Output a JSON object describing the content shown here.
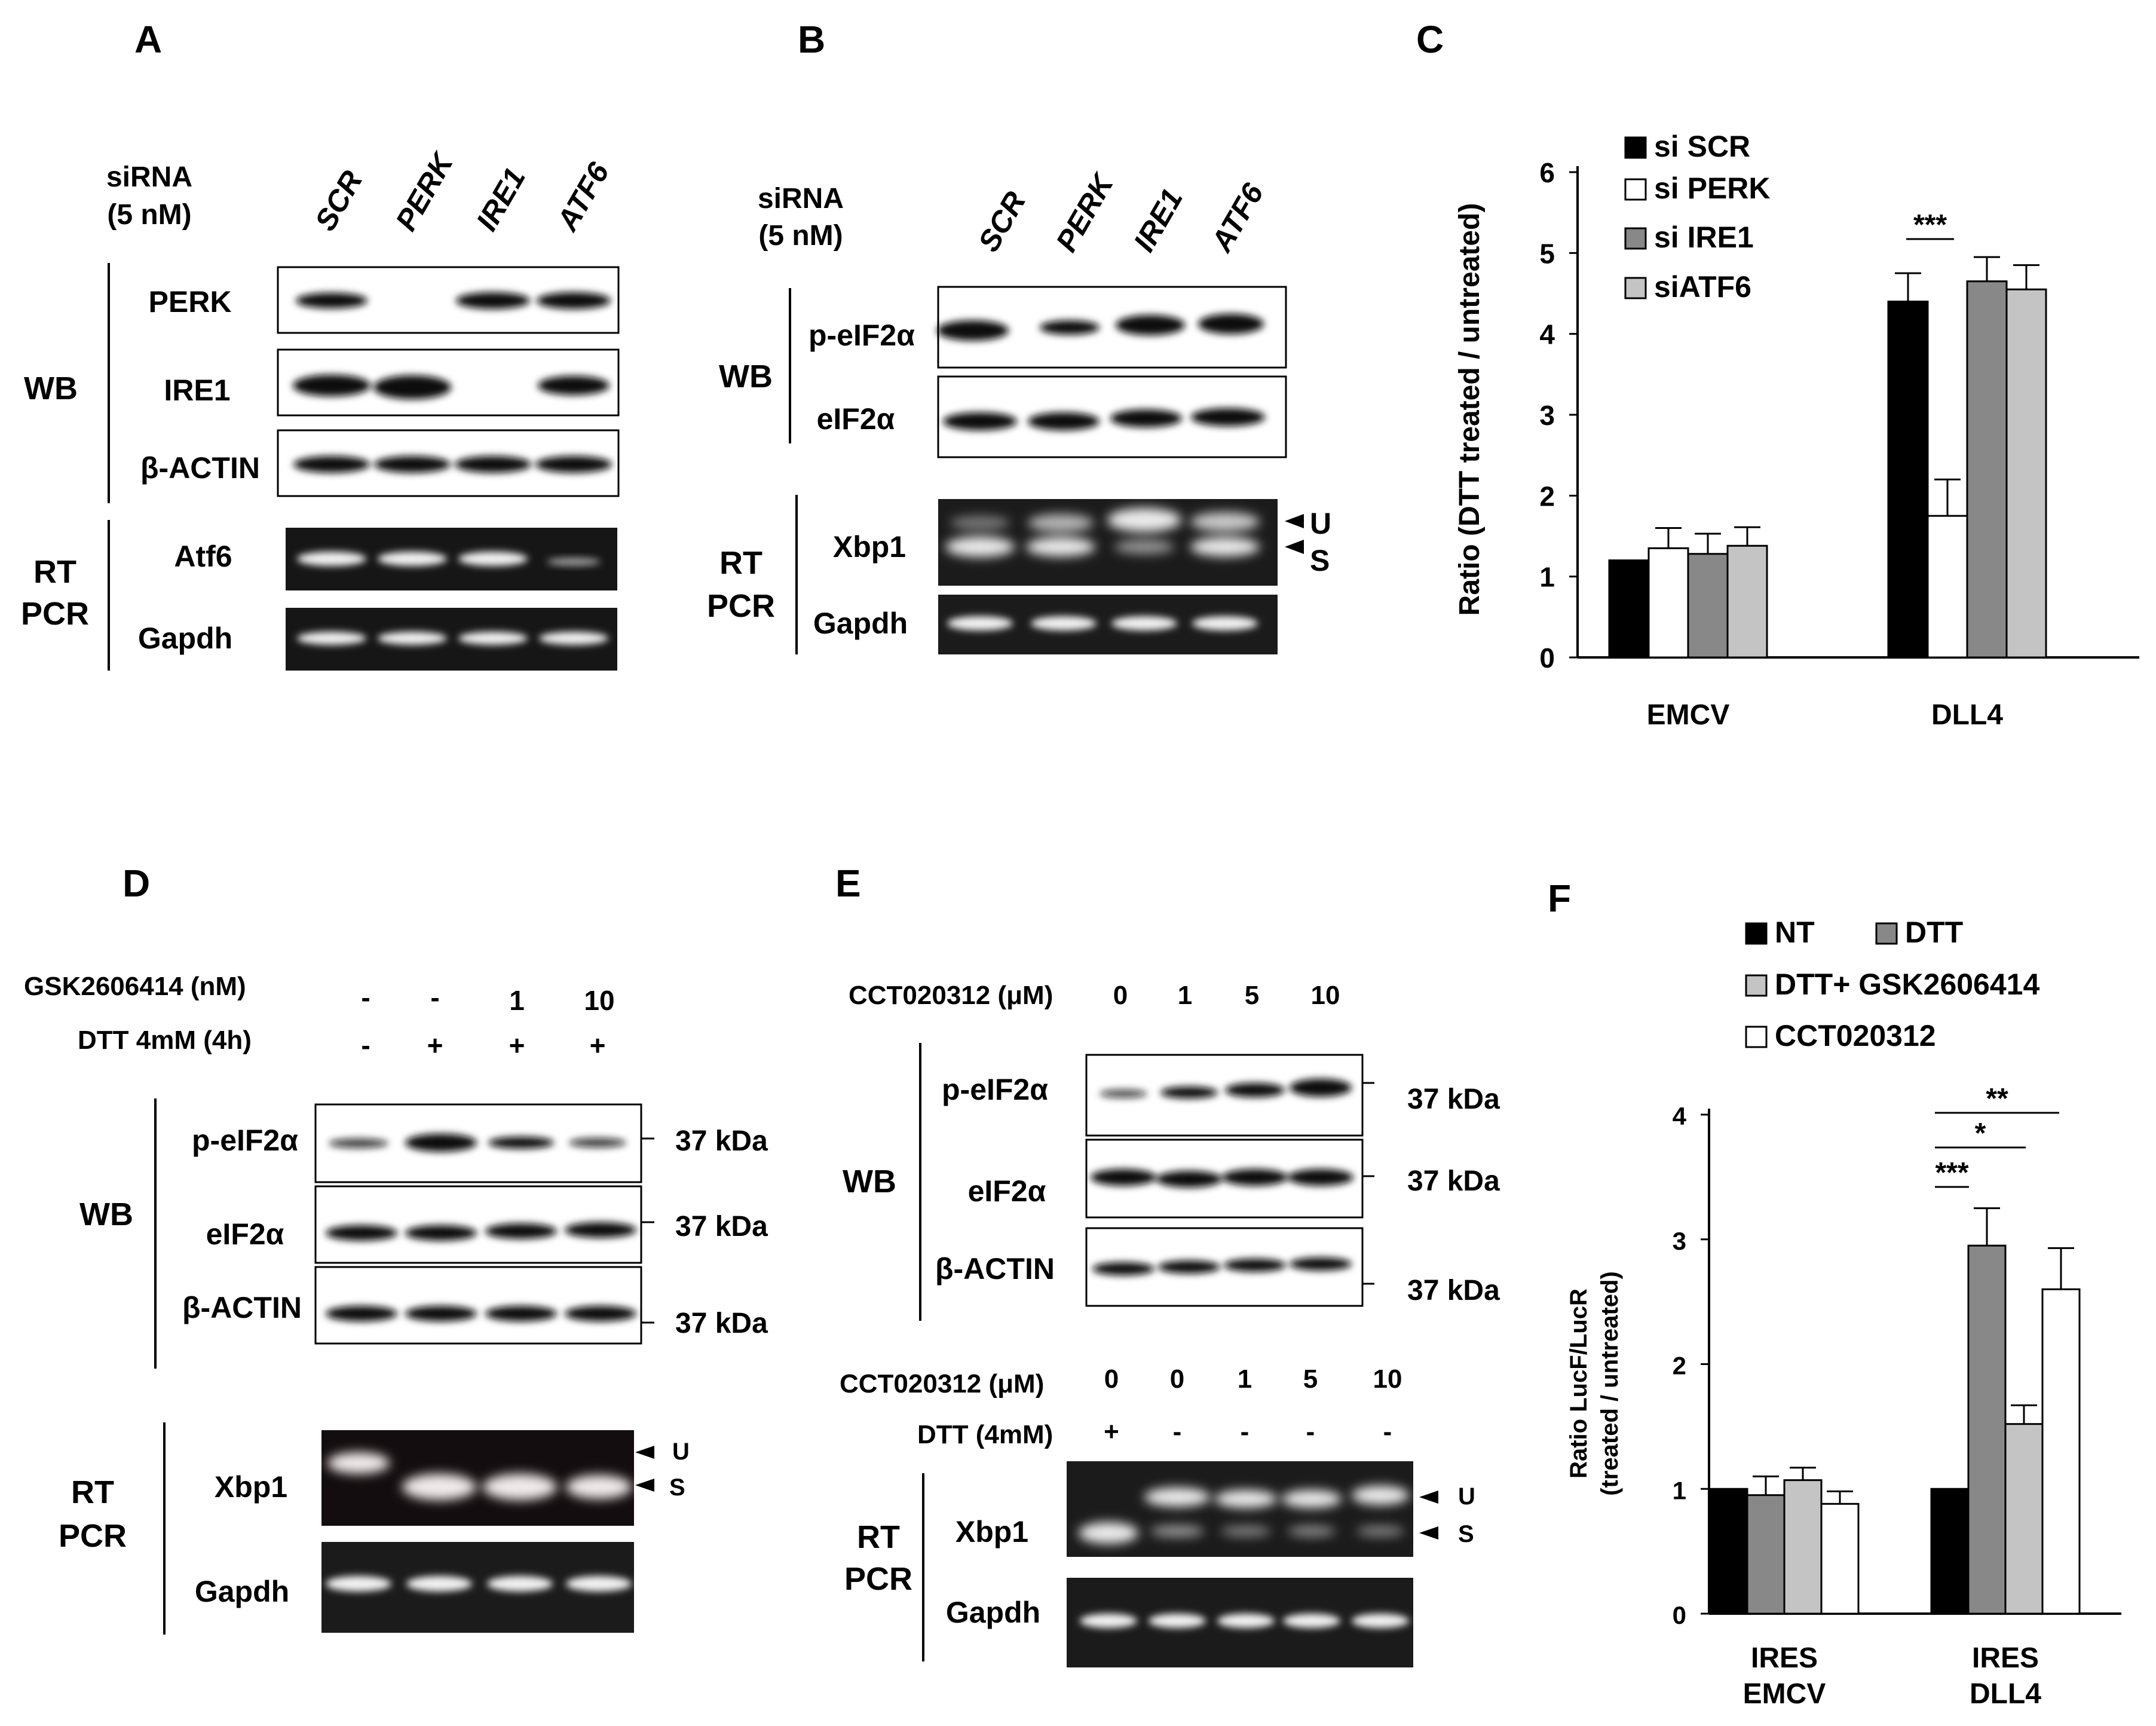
{
  "panels": {
    "A": {
      "letter": "A",
      "siRNA_label": [
        "siRNA",
        "(5 nM)"
      ],
      "lanes": [
        "SCR",
        "PERK",
        "IRE1",
        "ATF6"
      ],
      "wb_group": "WB",
      "wb_rows": [
        "PERK",
        "IRE1",
        "β-ACTIN"
      ],
      "rt_group": [
        "RT",
        "PCR"
      ],
      "rt_rows": [
        "Atf6",
        "Gapdh"
      ]
    },
    "B": {
      "letter": "B",
      "siRNA_label": [
        "siRNA",
        "(5 nM)"
      ],
      "lanes": [
        "SCR",
        "PERK",
        "IRE1",
        "ATF6"
      ],
      "wb_group": "WB",
      "wb_rows": [
        "p-eIF2α",
        "eIF2α"
      ],
      "rt_group": [
        "RT",
        "PCR"
      ],
      "rt_rows": [
        "Xbp1",
        "Gapdh"
      ],
      "markers": [
        "U",
        "S"
      ]
    },
    "C": {
      "letter": "C"
    },
    "D": {
      "letter": "D",
      "treat_rows": [
        {
          "label": "GSK2606414 (nM)",
          "values": [
            "-",
            "-",
            "1",
            "10"
          ]
        },
        {
          "label": "DTT 4mM (4h)",
          "values": [
            "-",
            "+",
            "+",
            "+"
          ]
        }
      ],
      "wb_group": "WB",
      "wb_rows": [
        "p-eIF2α",
        "eIF2α",
        "β-ACTIN"
      ],
      "kda": [
        "37 kDa",
        "37 kDa",
        "37 kDa"
      ],
      "rt_group": [
        "RT",
        "PCR"
      ],
      "rt_rows": [
        "Xbp1",
        "Gapdh"
      ],
      "markers": [
        "U",
        "S"
      ]
    },
    "E": {
      "letter": "E",
      "wb_treat": {
        "label": "CCT020312 (μM)",
        "values": [
          "0",
          "1",
          "5",
          "10"
        ]
      },
      "wb_group": "WB",
      "wb_rows": [
        "p-eIF2α",
        "eIF2α",
        "β-ACTIN"
      ],
      "kda": [
        "37 kDa",
        "37 kDa",
        "37 kDa"
      ],
      "rt_treat": [
        {
          "label": "CCT020312 (μM)",
          "values": [
            "0",
            "0",
            "1",
            "5",
            "10"
          ]
        },
        {
          "label": "DTT (4mM)",
          "values": [
            "+",
            "-",
            "-",
            "-",
            "-"
          ]
        }
      ],
      "rt_group": [
        "RT",
        "PCR"
      ],
      "rt_rows": [
        "Xbp1",
        "Gapdh"
      ],
      "markers": [
        "U",
        "S"
      ]
    },
    "F": {
      "letter": "F"
    }
  },
  "chart_data": [
    {
      "panel": "C",
      "type": "bar",
      "categories": [
        "EMCV",
        "DLL4"
      ],
      "ylabel": "Ratio (DTT treated / untreated)",
      "ylim": [
        0,
        6
      ],
      "yticks": [
        "0",
        "1",
        "2",
        "3",
        "4",
        "5",
        "6"
      ],
      "legend_position": "top-left",
      "series": [
        {
          "name": "si SCR",
          "values": [
            1.2,
            4.4
          ],
          "errors": [
            0.0,
            0.35
          ],
          "color": "#000000"
        },
        {
          "name": "si PERK",
          "values": [
            1.35,
            1.75
          ],
          "errors": [
            0.25,
            0.45
          ],
          "color": "#ffffff"
        },
        {
          "name": "si IRE1",
          "values": [
            1.28,
            4.65
          ],
          "errors": [
            0.25,
            0.3
          ],
          "color": "#888888"
        },
        {
          "name": "siATF6",
          "values": [
            1.38,
            4.55
          ],
          "errors": [
            0.23,
            0.3
          ],
          "color": "#c4c4c4"
        }
      ],
      "significance": [
        {
          "category": "DLL4",
          "label": "***"
        }
      ]
    },
    {
      "panel": "F",
      "type": "bar",
      "categories": [
        [
          "IRES",
          "EMCV"
        ],
        [
          "IRES",
          "DLL4"
        ]
      ],
      "ylabel": [
        "Ratio LucF/LucR",
        "(treated / untreated)"
      ],
      "ylim": [
        0,
        4
      ],
      "yticks": [
        "0",
        "1",
        "2",
        "3",
        "4"
      ],
      "legend_position": "top",
      "series": [
        {
          "name": "NT",
          "values": [
            1.0,
            1.0
          ],
          "errors": [
            0.0,
            0.0
          ],
          "color": "#000000"
        },
        {
          "name": "DTT",
          "values": [
            0.95,
            2.95
          ],
          "errors": [
            0.15,
            0.3
          ],
          "color": "#888888"
        },
        {
          "name": "DTT+ GSK2606414",
          "values": [
            1.07,
            1.52
          ],
          "errors": [
            0.1,
            0.15
          ],
          "color": "#c4c4c4"
        },
        {
          "name": "CCT020312",
          "values": [
            0.88,
            2.6
          ],
          "errors": [
            0.1,
            0.33
          ],
          "color": "#ffffff"
        }
      ],
      "significance": [
        {
          "category": "DLL4",
          "label": "**"
        },
        {
          "category": "DLL4",
          "label": "*"
        },
        {
          "category": "DLL4",
          "label": "***"
        }
      ]
    }
  ]
}
